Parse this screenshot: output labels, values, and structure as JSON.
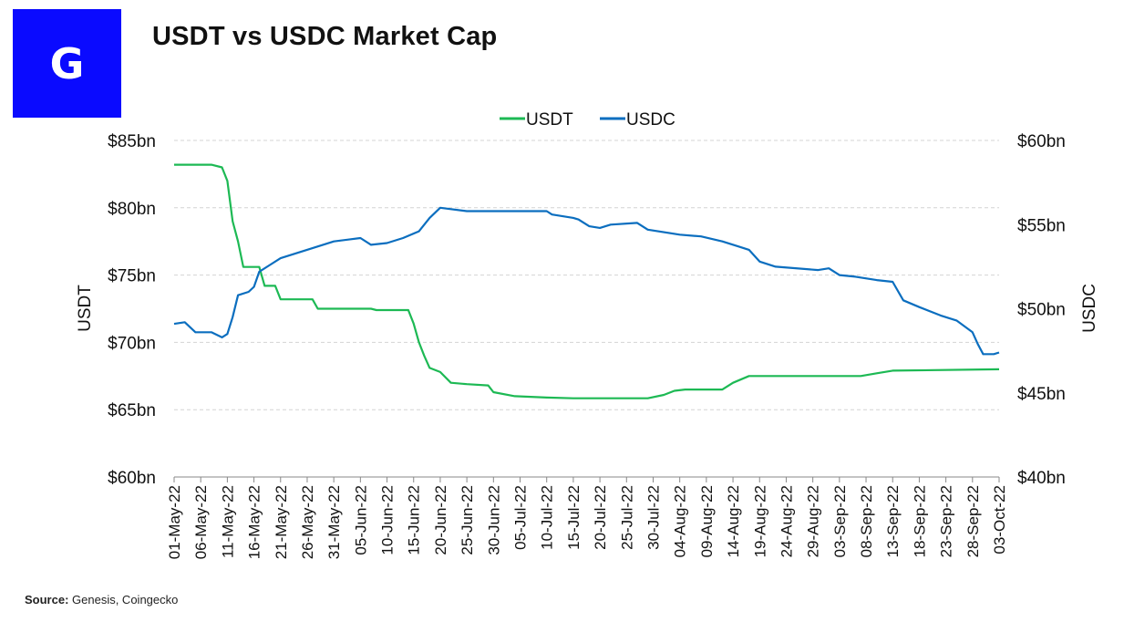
{
  "logo": {
    "letter": "G",
    "color": "#0a0aff"
  },
  "header": {
    "title": "USDT vs USDC Market Cap"
  },
  "footer": {
    "source_label": "Source:",
    "source_text": " Genesis, Coingecko"
  },
  "chart_data": {
    "type": "line",
    "title": "USDT vs USDC Market Cap",
    "legend_position": "top-center",
    "grid": true,
    "y_left": {
      "label": "USDT",
      "range": [
        60,
        85
      ],
      "ticks": [
        "$60bn",
        "$65bn",
        "$70bn",
        "$75bn",
        "$80bn",
        "$85bn"
      ]
    },
    "y_right": {
      "label": "USDC",
      "range": [
        40,
        60
      ],
      "ticks": [
        "$40bn",
        "$45bn",
        "$50bn",
        "$55bn",
        "$60bn"
      ]
    },
    "x_ticks": [
      "01-May-22",
      "06-May-22",
      "11-May-22",
      "16-May-22",
      "21-May-22",
      "26-May-22",
      "31-May-22",
      "05-Jun-22",
      "10-Jun-22",
      "15-Jun-22",
      "20-Jun-22",
      "25-Jun-22",
      "30-Jun-22",
      "05-Jul-22",
      "10-Jul-22",
      "15-Jul-22",
      "20-Jul-22",
      "25-Jul-22",
      "30-Jul-22",
      "04-Aug-22",
      "09-Aug-22",
      "14-Aug-22",
      "19-Aug-22",
      "24-Aug-22",
      "29-Aug-22",
      "03-Sep-22",
      "08-Sep-22",
      "13-Sep-22",
      "18-Sep-22",
      "23-Sep-22",
      "28-Sep-22",
      "03-Oct-22"
    ],
    "series": [
      {
        "name": "USDT",
        "axis": "left",
        "color": "#1db954",
        "points": [
          [
            "2022-05-01",
            83.2
          ],
          [
            "2022-05-08",
            83.2
          ],
          [
            "2022-05-10",
            83.0
          ],
          [
            "2022-05-11",
            82.0
          ],
          [
            "2022-05-12",
            79.0
          ],
          [
            "2022-05-13",
            77.5
          ],
          [
            "2022-05-14",
            75.6
          ],
          [
            "2022-05-17",
            75.6
          ],
          [
            "2022-05-18",
            74.2
          ],
          [
            "2022-05-20",
            74.2
          ],
          [
            "2022-05-21",
            73.2
          ],
          [
            "2022-05-27",
            73.2
          ],
          [
            "2022-05-28",
            72.5
          ],
          [
            "2022-06-07",
            72.5
          ],
          [
            "2022-06-08",
            72.4
          ],
          [
            "2022-06-14",
            72.4
          ],
          [
            "2022-06-15",
            71.4
          ],
          [
            "2022-06-16",
            70.0
          ],
          [
            "2022-06-17",
            69.0
          ],
          [
            "2022-06-18",
            68.1
          ],
          [
            "2022-06-20",
            67.8
          ],
          [
            "2022-06-22",
            67.0
          ],
          [
            "2022-06-25",
            66.9
          ],
          [
            "2022-06-29",
            66.8
          ],
          [
            "2022-06-30",
            66.3
          ],
          [
            "2022-07-04",
            66.0
          ],
          [
            "2022-07-10",
            65.9
          ],
          [
            "2022-07-15",
            65.85
          ],
          [
            "2022-07-29",
            65.85
          ],
          [
            "2022-08-01",
            66.1
          ],
          [
            "2022-08-03",
            66.4
          ],
          [
            "2022-08-05",
            66.5
          ],
          [
            "2022-08-12",
            66.5
          ],
          [
            "2022-08-14",
            67.0
          ],
          [
            "2022-08-17",
            67.5
          ],
          [
            "2022-09-07",
            67.5
          ],
          [
            "2022-09-10",
            67.7
          ],
          [
            "2022-09-13",
            67.9
          ],
          [
            "2022-10-03",
            68.0
          ]
        ]
      },
      {
        "name": "USDC",
        "axis": "right",
        "color": "#0b6ebf",
        "points": [
          [
            "2022-05-01",
            49.1
          ],
          [
            "2022-05-03",
            49.2
          ],
          [
            "2022-05-05",
            48.6
          ],
          [
            "2022-05-08",
            48.6
          ],
          [
            "2022-05-10",
            48.3
          ],
          [
            "2022-05-11",
            48.5
          ],
          [
            "2022-05-12",
            49.5
          ],
          [
            "2022-05-13",
            50.8
          ],
          [
            "2022-05-15",
            51.0
          ],
          [
            "2022-05-16",
            51.3
          ],
          [
            "2022-05-17",
            52.2
          ],
          [
            "2022-05-19",
            52.6
          ],
          [
            "2022-05-21",
            53.0
          ],
          [
            "2022-05-24",
            53.3
          ],
          [
            "2022-05-27",
            53.6
          ],
          [
            "2022-05-31",
            54.0
          ],
          [
            "2022-06-05",
            54.2
          ],
          [
            "2022-06-07",
            53.8
          ],
          [
            "2022-06-10",
            53.9
          ],
          [
            "2022-06-13",
            54.2
          ],
          [
            "2022-06-16",
            54.6
          ],
          [
            "2022-06-18",
            55.4
          ],
          [
            "2022-06-20",
            56.0
          ],
          [
            "2022-06-25",
            55.8
          ],
          [
            "2022-07-10",
            55.8
          ],
          [
            "2022-07-11",
            55.6
          ],
          [
            "2022-07-15",
            55.4
          ],
          [
            "2022-07-16",
            55.3
          ],
          [
            "2022-07-18",
            54.9
          ],
          [
            "2022-07-20",
            54.8
          ],
          [
            "2022-07-22",
            55.0
          ],
          [
            "2022-07-27",
            55.1
          ],
          [
            "2022-07-29",
            54.7
          ],
          [
            "2022-08-04",
            54.4
          ],
          [
            "2022-08-08",
            54.3
          ],
          [
            "2022-08-12",
            54.0
          ],
          [
            "2022-08-15",
            53.7
          ],
          [
            "2022-08-17",
            53.5
          ],
          [
            "2022-08-19",
            52.8
          ],
          [
            "2022-08-22",
            52.5
          ],
          [
            "2022-08-30",
            52.3
          ],
          [
            "2022-09-01",
            52.4
          ],
          [
            "2022-09-03",
            52.0
          ],
          [
            "2022-09-06",
            51.9
          ],
          [
            "2022-09-10",
            51.7
          ],
          [
            "2022-09-13",
            51.6
          ],
          [
            "2022-09-15",
            50.5
          ],
          [
            "2022-09-18",
            50.1
          ],
          [
            "2022-09-22",
            49.6
          ],
          [
            "2022-09-25",
            49.3
          ],
          [
            "2022-09-28",
            48.6
          ],
          [
            "2022-09-29",
            47.9
          ],
          [
            "2022-09-30",
            47.3
          ],
          [
            "2022-10-02",
            47.3
          ],
          [
            "2022-10-03",
            47.4
          ]
        ]
      }
    ]
  }
}
